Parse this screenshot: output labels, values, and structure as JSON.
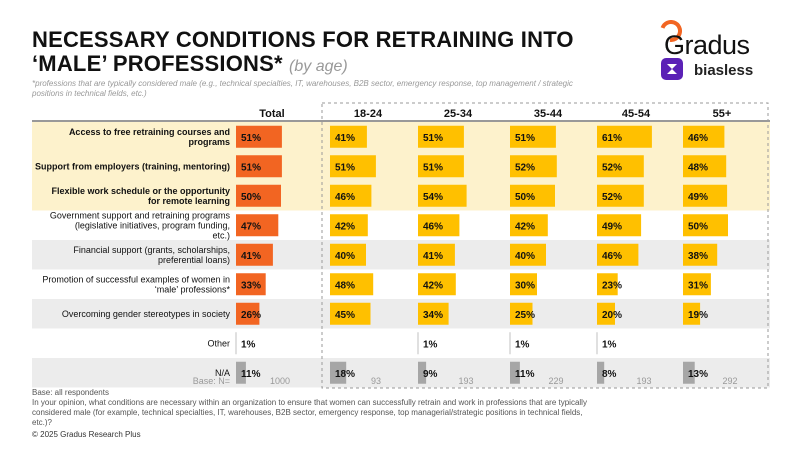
{
  "header": {
    "title_line1": "NECESSARY CONDITIONS FOR RETRAINING INTO",
    "title_line2": "‘MALE’ PROFESSIONS*",
    "title_suffix": "(by age)",
    "footnote": "*professions that are typically considered male (e.g., technical specialties, IT, warehouses, B2B sector, emergency response, top management / strategic positions in technical fields, etc.)"
  },
  "logos": {
    "gradus": "Gradus",
    "biasless": "biasless"
  },
  "colors": {
    "total_bar": "#f26522",
    "age_bar": "#ffc000",
    "gray_bar": "#a6a6a6",
    "highlight_bg": "#fdf2cc",
    "band_bg": "#ececec"
  },
  "chart_data": {
    "type": "bar",
    "orientation": "horizontal",
    "title": "NECESSARY CONDITIONS FOR RETRAINING INTO ‘MALE’ PROFESSIONS* (by age)",
    "columns": [
      "Total",
      "18-24",
      "25-34",
      "35-44",
      "45-54",
      "55+"
    ],
    "base_label": "Base: N=",
    "bases": [
      1000,
      93,
      193,
      229,
      193,
      292
    ],
    "categories": [
      "Access to free retraining courses and programs",
      "Support from employers (training, mentoring)",
      "Flexible work schedule or the opportunity for remote learning",
      "Government support and retraining programs (legislative initiatives, program funding, etc.)",
      "Financial support (grants, scholarships, preferential loans)",
      "Promotion of successful examples of women in ‘male’ professions*",
      "Overcoming gender stereotypes in society",
      "Other",
      "N/A"
    ],
    "highlighted": [
      true,
      true,
      true,
      false,
      false,
      false,
      false,
      false,
      false
    ],
    "series": [
      {
        "name": "Total",
        "values": [
          51,
          51,
          50,
          47,
          41,
          33,
          26,
          1,
          11
        ]
      },
      {
        "name": "18-24",
        "values": [
          41,
          51,
          46,
          42,
          40,
          48,
          45,
          null,
          18
        ]
      },
      {
        "name": "25-34",
        "values": [
          51,
          51,
          54,
          46,
          41,
          42,
          34,
          1,
          9
        ]
      },
      {
        "name": "35-44",
        "values": [
          51,
          52,
          50,
          42,
          40,
          30,
          25,
          1,
          11
        ]
      },
      {
        "name": "45-54",
        "values": [
          61,
          52,
          52,
          49,
          46,
          23,
          20,
          1,
          8
        ]
      },
      {
        "name": "55+",
        "values": [
          46,
          48,
          49,
          50,
          38,
          31,
          19,
          null,
          13
        ]
      }
    ],
    "unit": "%"
  },
  "meta": {
    "base_line": "Base: all respondents",
    "question": "In your opinion, what conditions are necessary within an organization to ensure that women can successfully retrain and work in professions that are typically considered male (for example, technical specialties, IT, warehouses, B2B sector, emergency response, top managerial/strategic positions in technical fields, etc.)?",
    "copyright": "© 2025 Gradus Research Plus"
  }
}
